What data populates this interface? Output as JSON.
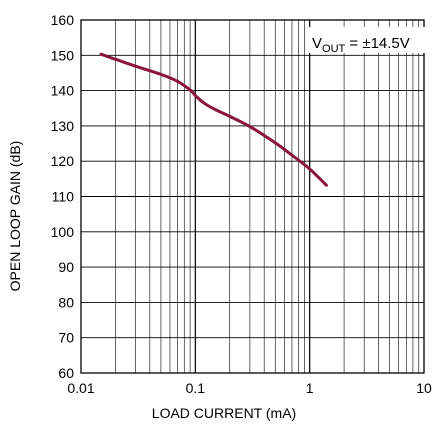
{
  "chart_data": {
    "type": "line",
    "title": "",
    "xlabel": "LOAD CURRENT (mA)",
    "ylabel": "OPEN LOOP GAIN (dB)",
    "x_scale": "log",
    "xlim": [
      0.01,
      10
    ],
    "ylim": [
      60,
      160
    ],
    "x_ticks": [
      0.01,
      0.1,
      1,
      10
    ],
    "x_tick_labels": [
      "0.01",
      "0.1",
      "1",
      "10"
    ],
    "y_ticks": [
      60,
      70,
      80,
      90,
      100,
      110,
      120,
      130,
      140,
      150,
      160
    ],
    "y_tick_labels": [
      "60",
      "70",
      "80",
      "90",
      "100",
      "110",
      "120",
      "130",
      "140",
      "150",
      "160"
    ],
    "grid": true,
    "annotation": {
      "prefix": "V",
      "subscript": "OUT",
      "suffix": " = ±14.5V"
    },
    "series": [
      {
        "color": "#8a1538",
        "x": [
          0.015,
          0.02,
          0.03,
          0.05,
          0.07,
          0.09,
          0.1,
          0.12,
          0.15,
          0.2,
          0.3,
          0.5,
          0.7,
          1.0,
          1.4
        ],
        "y": [
          150.3,
          148.9,
          146.9,
          144.6,
          142.6,
          140.2,
          138.6,
          136.4,
          134.6,
          132.7,
          129.8,
          125.2,
          121.7,
          117.8,
          113.2
        ]
      }
    ]
  }
}
